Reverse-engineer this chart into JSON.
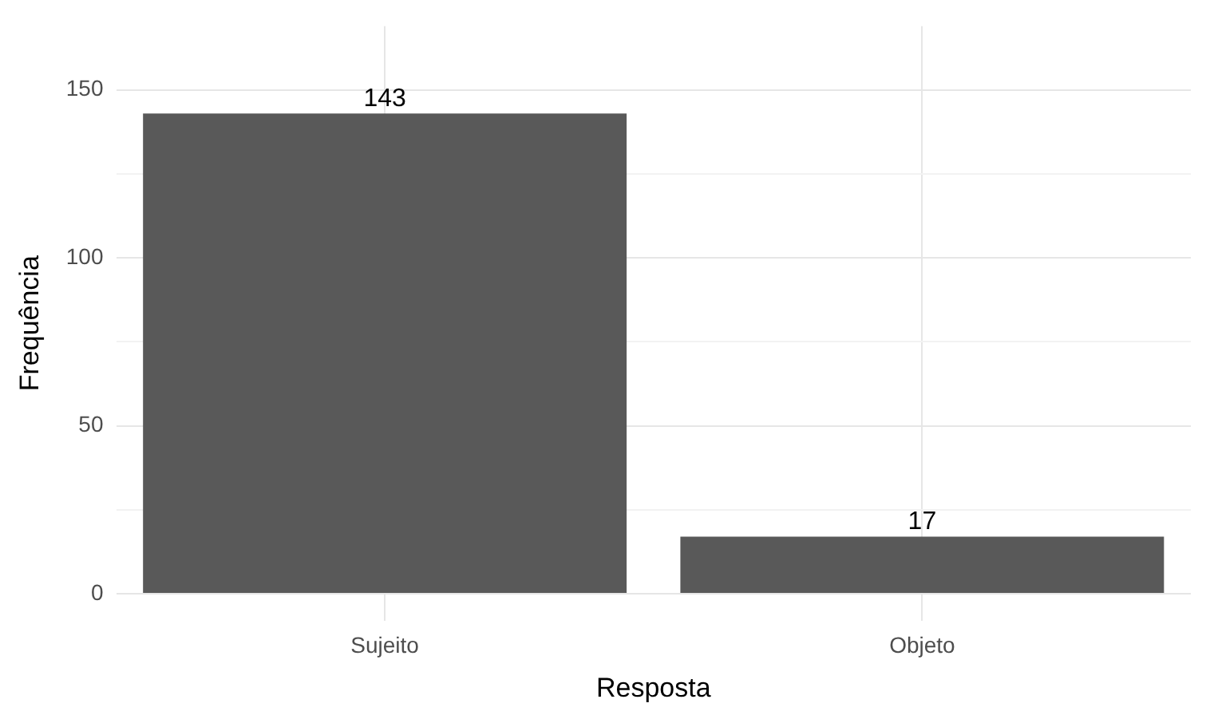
{
  "chart_data": {
    "type": "bar",
    "xlabel": "Resposta",
    "ylabel": "Frequência",
    "categories": [
      "Sujeito",
      "Objeto"
    ],
    "values": [
      143,
      17
    ],
    "color": "#595959",
    "data_labels": true,
    "ylim": [
      -8,
      169
    ],
    "yticks": [
      0,
      {
        "value": 25,
        "label": null
      },
      50,
      {
        "value": 75,
        "label": null
      },
      100,
      {
        "value": 125,
        "label": null
      },
      150
    ],
    "grid": true,
    "legend": false
  }
}
